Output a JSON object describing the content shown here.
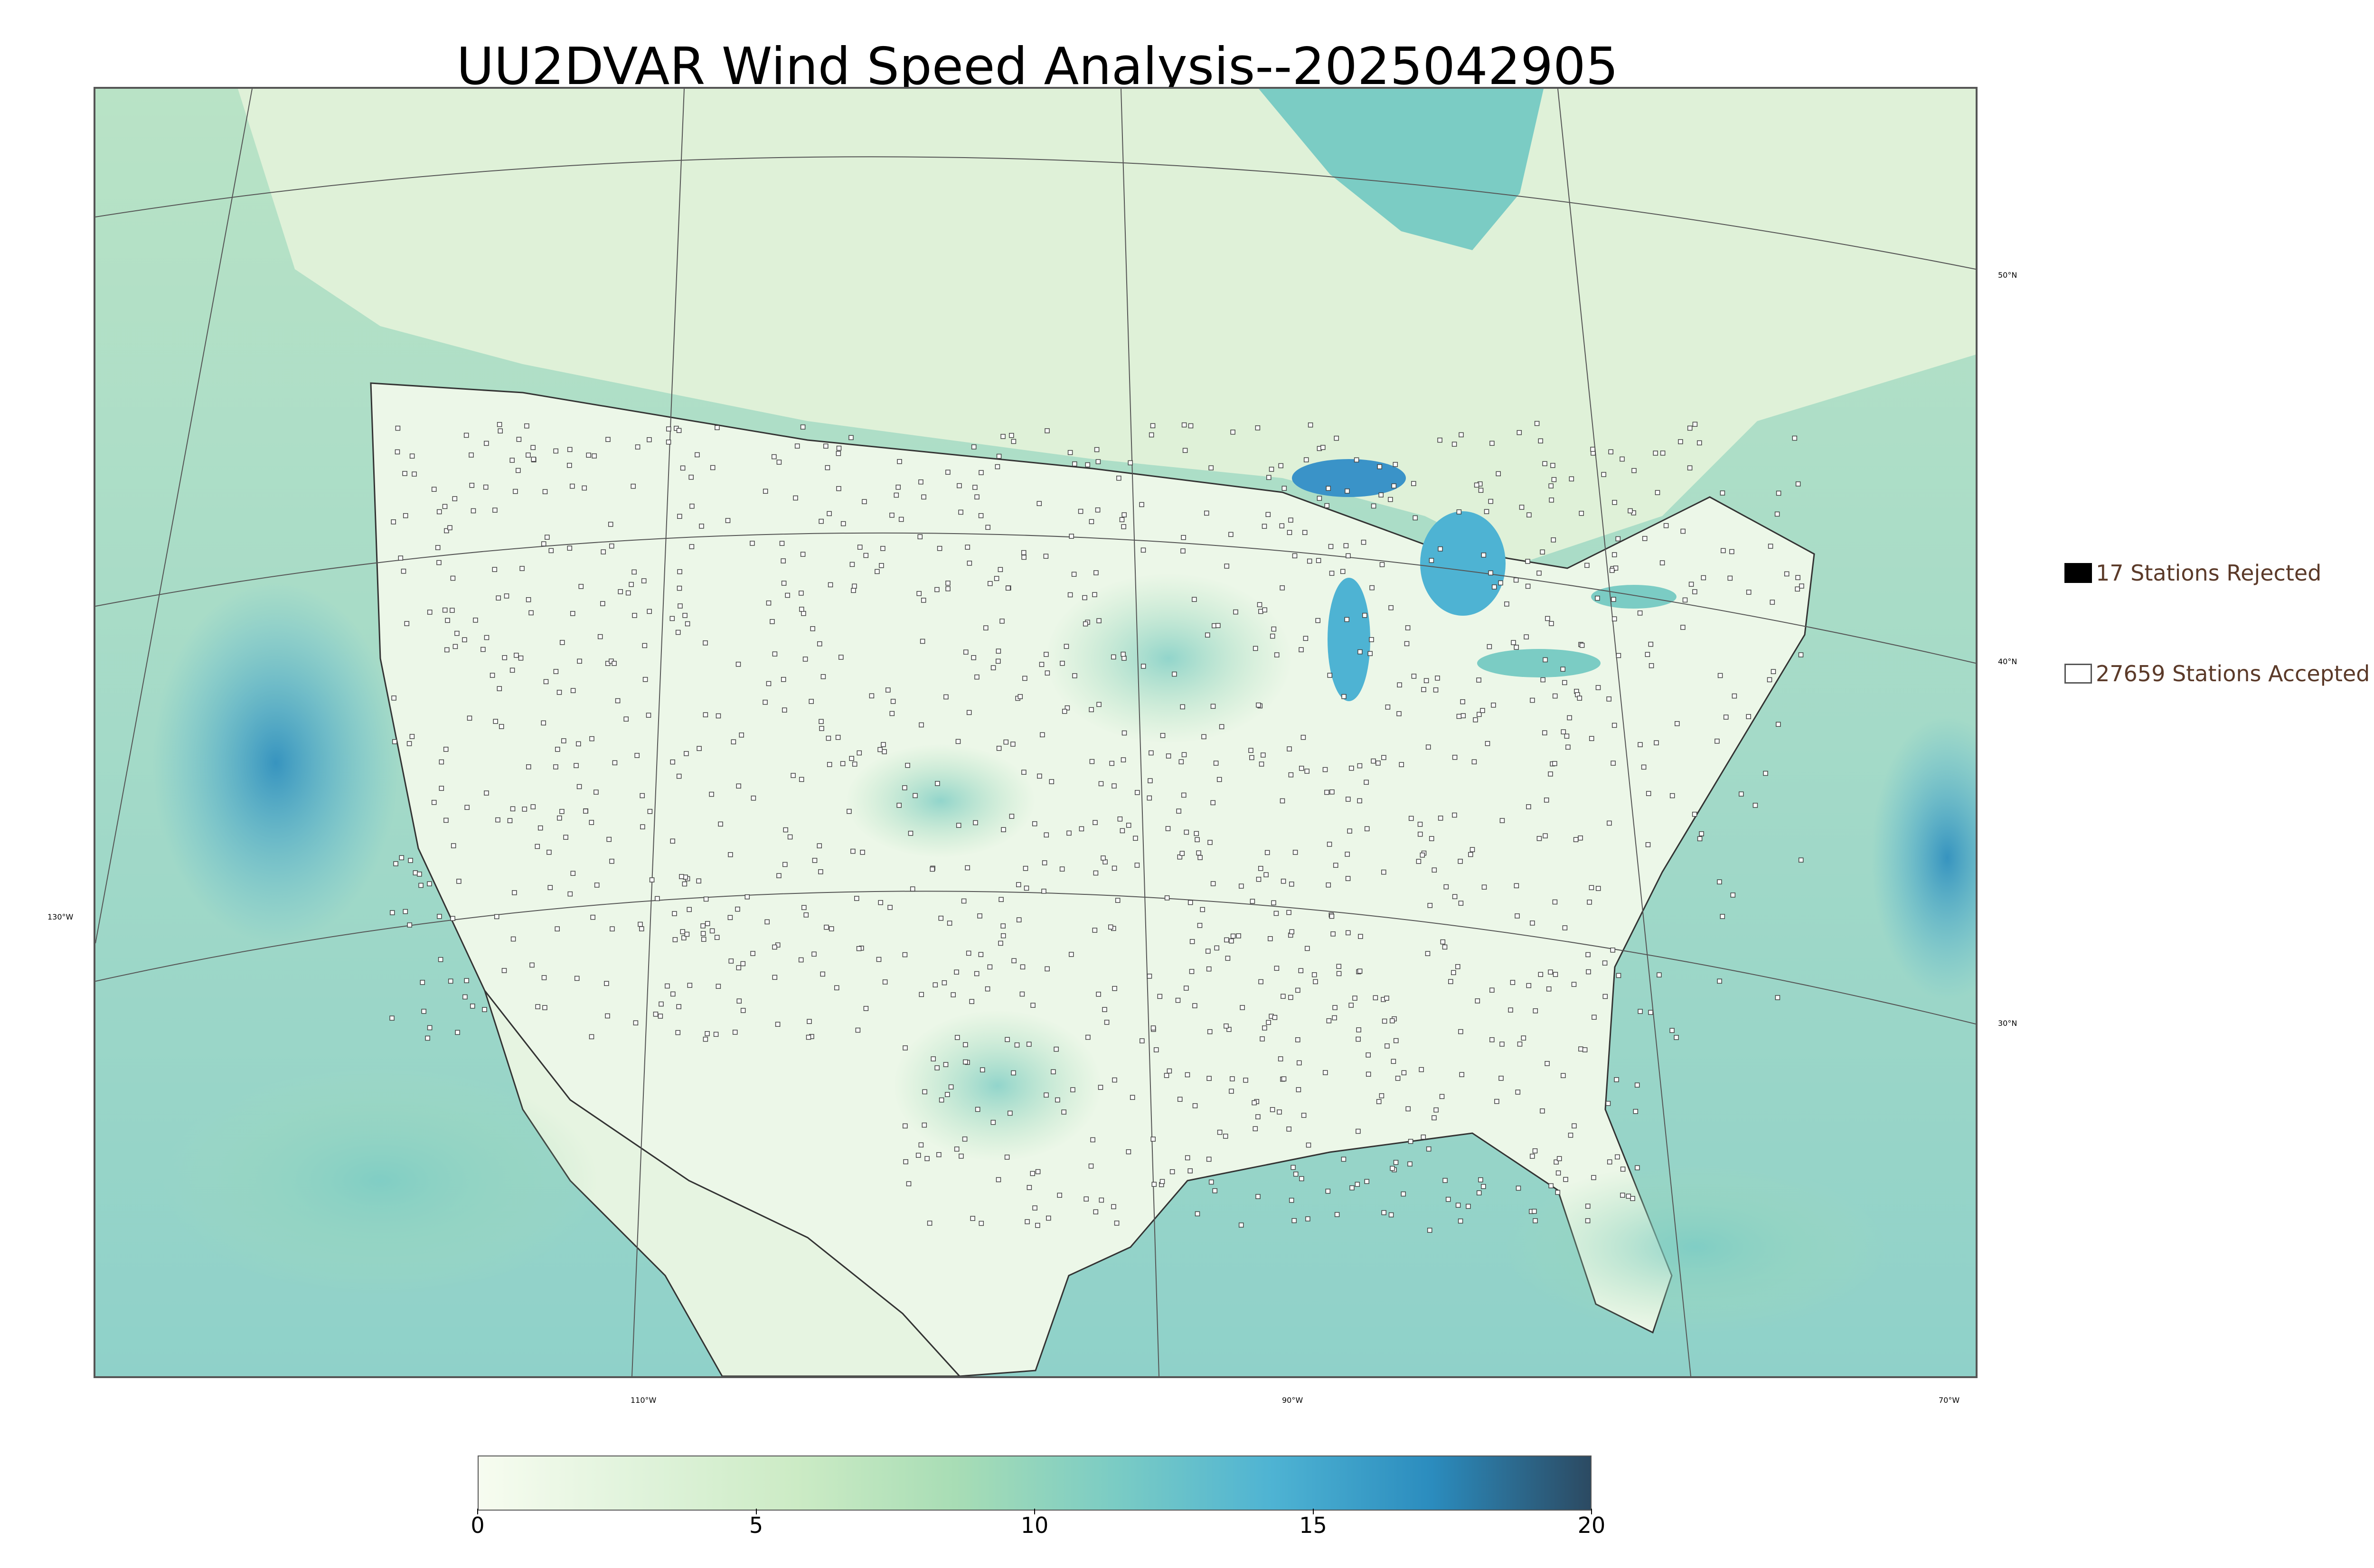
{
  "title": "UU2DVAR Wind Speed Analysis--2025042905",
  "lat_labels": [
    "50°N",
    "40°N",
    "30°N"
  ],
  "lon_labels": [
    "130°W",
    "110°W",
    "90°W",
    "70°W"
  ],
  "legend": {
    "rejected": {
      "label": "17 Stations Rejected",
      "color": "#000000"
    },
    "accepted": {
      "label": "27659 Stations Accepted",
      "color": "#ffffff"
    }
  },
  "colorbar": {
    "ticks": [
      "0",
      "5",
      "10",
      "15",
      "20"
    ],
    "range": [
      0,
      20
    ],
    "colors": [
      "#f7fcf0",
      "#e0f3db",
      "#ccebc5",
      "#a8ddb5",
      "#7bccc4",
      "#4eb3d3",
      "#2b8cbe",
      "#2c4a62"
    ]
  },
  "colors": {
    "land": "#e9f6e4",
    "ocean": "#7fc9cf",
    "strong_wind": "#3a93c8",
    "station_outline": "#444444"
  }
}
